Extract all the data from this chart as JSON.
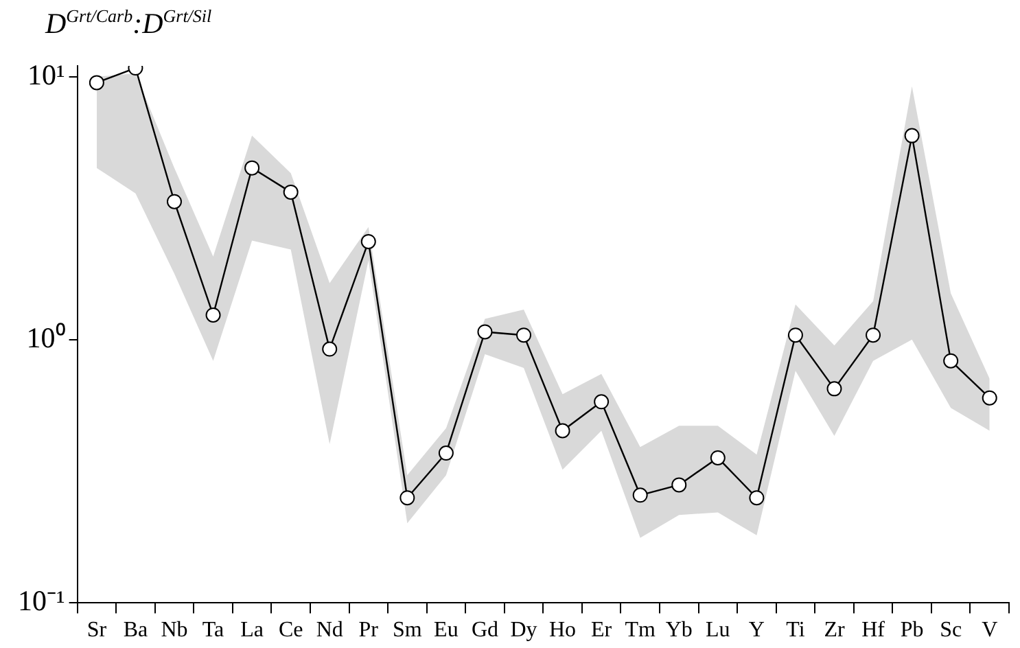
{
  "chart_data": {
    "type": "line",
    "ylabel": "D$^{Grt/Carb}$:D$^{Grt/Sil}$",
    "categories": [
      "Sr",
      "Ba",
      "Nb",
      "Ta",
      "La",
      "Ce",
      "Nd",
      "Pr",
      "Sm",
      "Eu",
      "Gd",
      "Dy",
      "Ho",
      "Er",
      "Tm",
      "Yb",
      "Lu",
      "Y",
      "Ti",
      "Zr",
      "Hf",
      "Pb",
      "Sc",
      "V"
    ],
    "series": [
      {
        "color": "#000000",
        "values": [
          9.5,
          10.8,
          3.35,
          1.24,
          4.5,
          3.64,
          0.92,
          2.36,
          0.25,
          0.37,
          1.07,
          1.04,
          0.45,
          0.58,
          0.256,
          0.28,
          0.355,
          0.25,
          1.04,
          0.65,
          1.04,
          5.97,
          0.83,
          0.6
        ],
        "lower": [
          4.5,
          3.6,
          1.78,
          0.83,
          2.38,
          2.2,
          0.4,
          2.0,
          0.2,
          0.305,
          0.88,
          0.78,
          0.32,
          0.45,
          0.176,
          0.215,
          0.22,
          0.18,
          0.76,
          0.43,
          0.83,
          1.0,
          0.55,
          0.45
        ],
        "upper": [
          10,
          10.3,
          4.5,
          2.07,
          5.97,
          4.3,
          1.64,
          2.68,
          0.305,
          0.46,
          1.2,
          1.3,
          0.62,
          0.74,
          0.39,
          0.47,
          0.47,
          0.365,
          1.36,
          0.95,
          1.4,
          9.2,
          1.5,
          0.71
        ]
      }
    ],
    "log": true,
    "ylim": [
      0.1,
      11
    ],
    "yticks": [
      {
        "value": 0.1,
        "label": "10⁻¹"
      },
      {
        "value": 1,
        "label": "10⁰"
      },
      {
        "value": 10,
        "label": "10¹"
      }
    ],
    "grid": false,
    "legend": false,
    "marker": "circle",
    "line_style": "solid"
  }
}
